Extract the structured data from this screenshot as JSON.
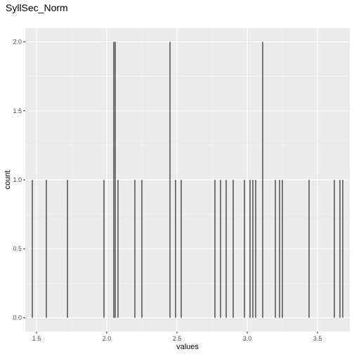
{
  "chart_data": {
    "type": "histogram",
    "title": "SyllSec_Norm",
    "xlabel": "values",
    "ylabel": "count",
    "xlim": [
      1.42,
      3.73
    ],
    "ylim": [
      -0.1,
      2.1
    ],
    "xticks": [
      1.5,
      2.0,
      2.5,
      3.0,
      3.5
    ],
    "xtick_labels": [
      "1.5",
      "2.0",
      "2.5",
      "3.0",
      "3.5"
    ],
    "yticks": [
      0.0,
      0.5,
      1.0,
      1.5,
      2.0
    ],
    "ytick_labels": [
      "0.0",
      "0.5",
      "1.0",
      "1.5",
      "2.0"
    ],
    "grid": true,
    "bar_color": "#595959",
    "panel_color": "#EBEBEB",
    "grid_color": "#FFFFFF",
    "bars": [
      {
        "x": 1.47,
        "count": 1
      },
      {
        "x": 1.57,
        "count": 1
      },
      {
        "x": 1.72,
        "count": 1
      },
      {
        "x": 1.98,
        "count": 1
      },
      {
        "x": 2.05,
        "count": 2
      },
      {
        "x": 2.06,
        "count": 2
      },
      {
        "x": 2.08,
        "count": 1
      },
      {
        "x": 2.2,
        "count": 1
      },
      {
        "x": 2.25,
        "count": 1
      },
      {
        "x": 2.45,
        "count": 2
      },
      {
        "x": 2.49,
        "count": 1
      },
      {
        "x": 2.53,
        "count": 1
      },
      {
        "x": 2.77,
        "count": 1
      },
      {
        "x": 2.81,
        "count": 1
      },
      {
        "x": 2.85,
        "count": 1
      },
      {
        "x": 2.9,
        "count": 1
      },
      {
        "x": 2.98,
        "count": 1
      },
      {
        "x": 3.02,
        "count": 1
      },
      {
        "x": 3.04,
        "count": 1
      },
      {
        "x": 3.06,
        "count": 1
      },
      {
        "x": 3.11,
        "count": 2
      },
      {
        "x": 3.2,
        "count": 1
      },
      {
        "x": 3.23,
        "count": 1
      },
      {
        "x": 3.25,
        "count": 1
      },
      {
        "x": 3.44,
        "count": 1
      },
      {
        "x": 3.62,
        "count": 1
      },
      {
        "x": 3.66,
        "count": 1
      },
      {
        "x": 3.68,
        "count": 1
      }
    ]
  }
}
